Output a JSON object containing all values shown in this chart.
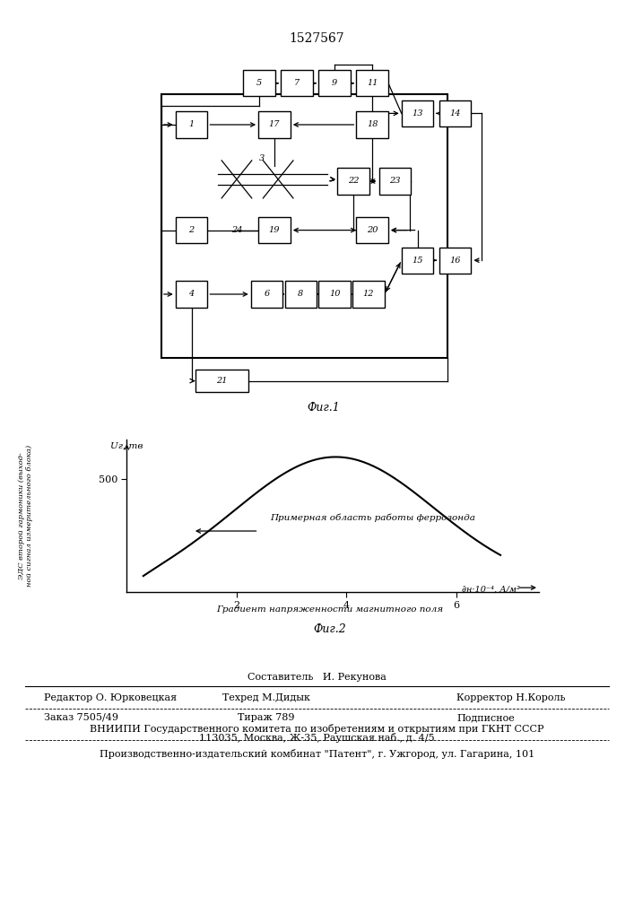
{
  "title": "1527567",
  "fig1_label": "Фиг.1",
  "fig2_label": "Фиг.2",
  "background_color": "#ffffff",
  "annotation": "Примерная область работы феррозонда",
  "ylabel_rot": "ЭДС второй гармоники (выход-\nной сигнал измерительного блока)",
  "xlabel_fig2": "Градиент напряженности магнитного поля",
  "footer": [
    [
      0.5,
      "Составитель   И. Рекунова"
    ],
    [
      0.08,
      "Редактор О. Юрковецкая"
    ],
    [
      0.4,
      "Техред М.Дидык"
    ],
    [
      0.68,
      "Корректор Н.Король"
    ],
    [
      0.08,
      "Заказ 7505/49"
    ],
    [
      0.4,
      "Тираж 789"
    ],
    [
      0.68,
      "Подписное"
    ],
    [
      0.5,
      "ВНИИПИ Государственного комитета по изобретениям и открытиям при ГКНТ СССР"
    ],
    [
      0.5,
      "113035, Москва, Ж-35, Раушская наб., д. 4/5"
    ],
    [
      0.5,
      "Производственно-издательский комбинат \"Патент\", г. Ужгород, ул. Гагарина, 101"
    ]
  ]
}
